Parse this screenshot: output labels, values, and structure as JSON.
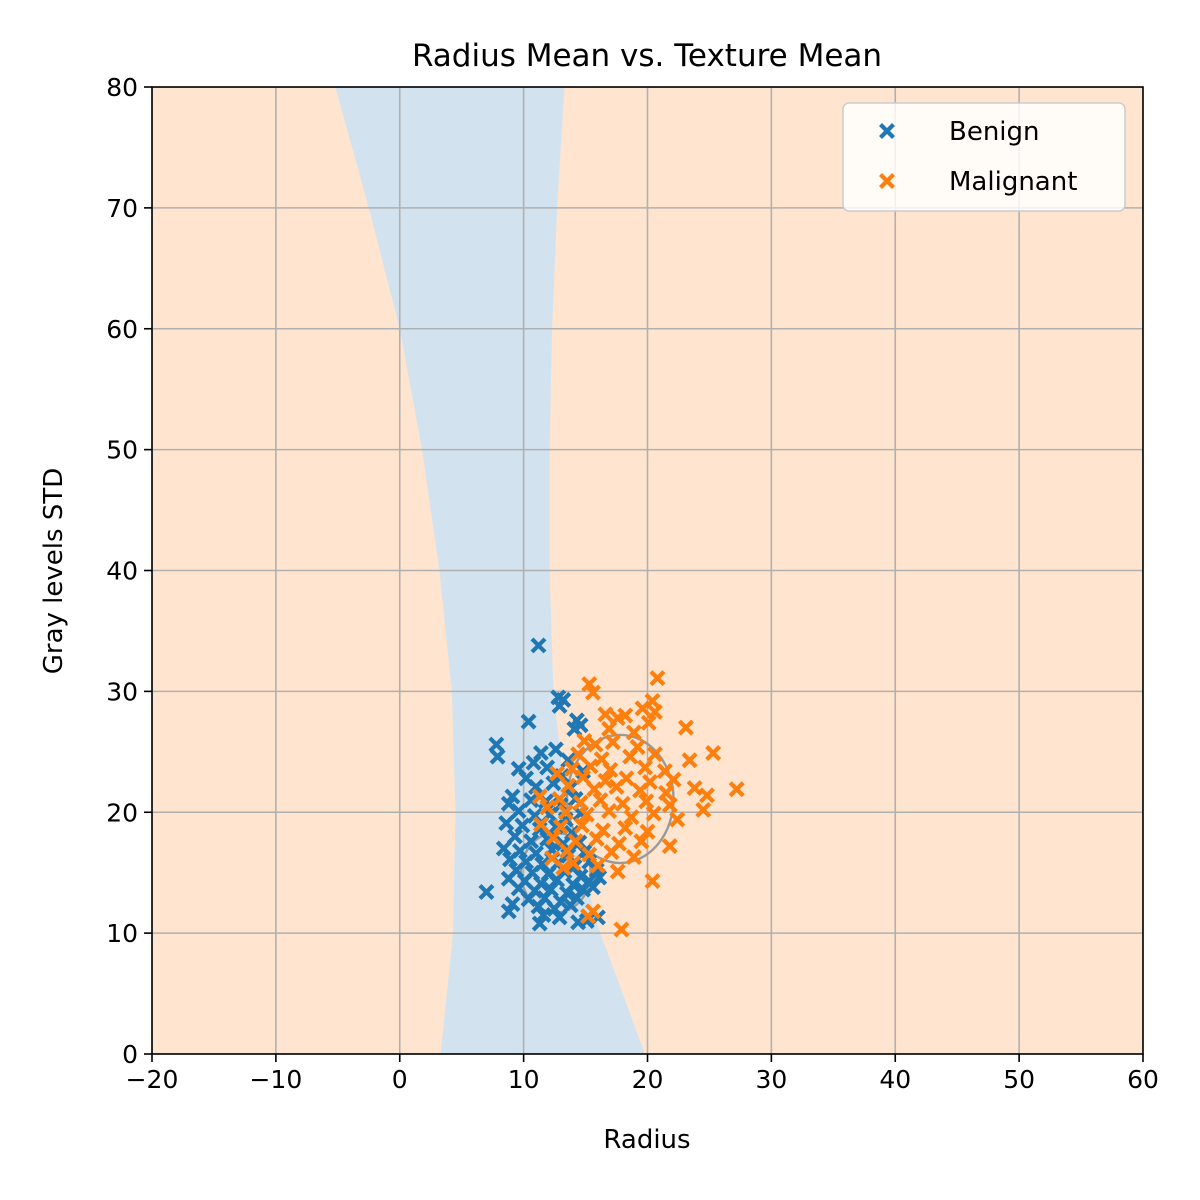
{
  "chart_data": {
    "type": "scatter",
    "title": "Radius Mean vs. Texture Mean",
    "xlabel": "Radius",
    "ylabel": "Gray levels STD",
    "xlim": [
      -20,
      60
    ],
    "ylim": [
      0,
      80
    ],
    "xticks": [
      -20,
      -10,
      0,
      10,
      20,
      30,
      40,
      50,
      60
    ],
    "yticks": [
      0,
      10,
      20,
      30,
      40,
      50,
      60,
      70,
      80
    ],
    "xtick_labels": [
      "−20",
      "−10",
      "0",
      "10",
      "20",
      "30",
      "40",
      "50",
      "60"
    ],
    "ytick_labels": [
      "0",
      "10",
      "20",
      "30",
      "40",
      "50",
      "60",
      "70",
      "80"
    ],
    "grid": true,
    "legend_position": "top-right",
    "background_region_color": "#ffe5cf",
    "decision_region": {
      "color": "#d2e3ef",
      "label_class": "Benign",
      "left_boundary": [
        [
          -5.2,
          80
        ],
        [
          -2.5,
          70
        ],
        [
          0,
          60
        ],
        [
          1.8,
          50
        ],
        [
          3.2,
          40
        ],
        [
          4.2,
          30
        ],
        [
          4.5,
          20
        ],
        [
          4.3,
          10
        ],
        [
          3.3,
          0
        ]
      ],
      "right_boundary": [
        [
          13.3,
          80
        ],
        [
          12.7,
          70
        ],
        [
          12.3,
          60
        ],
        [
          12.1,
          50
        ],
        [
          12.1,
          40
        ],
        [
          12.4,
          30
        ],
        [
          13.5,
          20
        ],
        [
          16.2,
          10
        ],
        [
          19.8,
          0
        ]
      ]
    },
    "contours": [
      {
        "color": "#999999",
        "center": [
          12.6,
          15.0
        ],
        "rx": 2.8,
        "ry": 3.3
      },
      {
        "color": "#999999",
        "center": [
          17.8,
          21.1
        ],
        "rx": 4.3,
        "ry": 5.3
      }
    ],
    "series": [
      {
        "name": "Benign",
        "color": "#1f77b4",
        "marker": "x",
        "points": [
          [
            11.2,
            33.8
          ],
          [
            12.8,
            29.5
          ],
          [
            13.2,
            29.3
          ],
          [
            12.9,
            28.8
          ],
          [
            14.3,
            27.6
          ],
          [
            10.4,
            27.5
          ],
          [
            14.6,
            27.2
          ],
          [
            14.1,
            26.9
          ],
          [
            7.8,
            25.6
          ],
          [
            7.9,
            24.6
          ],
          [
            11.4,
            24.9
          ],
          [
            12.6,
            25.2
          ],
          [
            10.8,
            24.1
          ],
          [
            13.6,
            24.3
          ],
          [
            9.6,
            23.6
          ],
          [
            11.9,
            23.7
          ],
          [
            13.1,
            23.0
          ],
          [
            14.8,
            23.4
          ],
          [
            10.2,
            22.8
          ],
          [
            11.0,
            22.1
          ],
          [
            12.4,
            22.4
          ],
          [
            13.8,
            22.0
          ],
          [
            9.1,
            21.3
          ],
          [
            10.6,
            21.0
          ],
          [
            11.8,
            20.9
          ],
          [
            13.0,
            20.6
          ],
          [
            14.2,
            21.1
          ],
          [
            8.8,
            20.7
          ],
          [
            9.6,
            20.1
          ],
          [
            10.9,
            19.7
          ],
          [
            12.1,
            19.8
          ],
          [
            13.4,
            19.4
          ],
          [
            14.6,
            19.9
          ],
          [
            8.6,
            19.1
          ],
          [
            9.9,
            18.9
          ],
          [
            11.3,
            18.6
          ],
          [
            12.6,
            18.8
          ],
          [
            13.9,
            18.3
          ],
          [
            9.3,
            18.0
          ],
          [
            10.6,
            17.6
          ],
          [
            11.9,
            17.8
          ],
          [
            13.2,
            17.4
          ],
          [
            14.5,
            17.5
          ],
          [
            8.4,
            17.0
          ],
          [
            9.7,
            16.8
          ],
          [
            11.0,
            16.6
          ],
          [
            12.3,
            16.9
          ],
          [
            13.6,
            16.4
          ],
          [
            14.9,
            16.7
          ],
          [
            8.9,
            16.1
          ],
          [
            10.2,
            15.9
          ],
          [
            11.5,
            15.7
          ],
          [
            12.8,
            15.8
          ],
          [
            14.1,
            15.5
          ],
          [
            15.3,
            15.9
          ],
          [
            9.4,
            15.2
          ],
          [
            10.7,
            15.0
          ],
          [
            12.0,
            14.9
          ],
          [
            13.3,
            15.1
          ],
          [
            14.6,
            14.7
          ],
          [
            15.9,
            15.2
          ],
          [
            8.8,
            14.5
          ],
          [
            10.1,
            14.3
          ],
          [
            11.4,
            14.1
          ],
          [
            12.7,
            14.4
          ],
          [
            14.0,
            14.0
          ],
          [
            15.3,
            14.3
          ],
          [
            16.1,
            14.6
          ],
          [
            9.6,
            13.7
          ],
          [
            10.9,
            13.5
          ],
          [
            12.2,
            13.6
          ],
          [
            13.5,
            13.3
          ],
          [
            14.8,
            13.6
          ],
          [
            15.6,
            13.8
          ],
          [
            7.0,
            13.4
          ],
          [
            10.4,
            12.8
          ],
          [
            11.7,
            12.9
          ],
          [
            13.0,
            12.6
          ],
          [
            14.3,
            12.9
          ],
          [
            9.1,
            12.4
          ],
          [
            11.2,
            12.2
          ],
          [
            12.5,
            12.0
          ],
          [
            13.8,
            12.3
          ],
          [
            8.8,
            11.8
          ],
          [
            11.6,
            11.5
          ],
          [
            12.9,
            11.3
          ],
          [
            11.3,
            10.8
          ],
          [
            14.4,
            10.9
          ],
          [
            15.1,
            11.0
          ],
          [
            16.0,
            11.3
          ]
        ]
      },
      {
        "name": "Malignant",
        "color": "#ff7f0e",
        "marker": "x",
        "points": [
          [
            20.8,
            31.1
          ],
          [
            15.3,
            30.6
          ],
          [
            15.6,
            29.9
          ],
          [
            20.4,
            29.2
          ],
          [
            19.6,
            28.6
          ],
          [
            20.6,
            28.3
          ],
          [
            16.6,
            28.1
          ],
          [
            17.6,
            27.8
          ],
          [
            18.2,
            28.0
          ],
          [
            23.1,
            27.0
          ],
          [
            20.1,
            27.4
          ],
          [
            16.9,
            26.9
          ],
          [
            18.9,
            26.6
          ],
          [
            14.9,
            25.9
          ],
          [
            15.8,
            25.6
          ],
          [
            17.2,
            25.8
          ],
          [
            19.2,
            25.4
          ],
          [
            25.3,
            24.9
          ],
          [
            20.6,
            24.8
          ],
          [
            14.4,
            24.8
          ],
          [
            16.3,
            24.4
          ],
          [
            18.6,
            24.6
          ],
          [
            23.4,
            24.3
          ],
          [
            13.9,
            23.6
          ],
          [
            15.4,
            23.8
          ],
          [
            17.0,
            23.5
          ],
          [
            19.8,
            23.7
          ],
          [
            21.4,
            23.4
          ],
          [
            12.7,
            23.2
          ],
          [
            14.8,
            22.9
          ],
          [
            16.6,
            22.6
          ],
          [
            18.3,
            22.8
          ],
          [
            20.2,
            22.5
          ],
          [
            22.1,
            22.7
          ],
          [
            13.6,
            22.2
          ],
          [
            15.7,
            21.9
          ],
          [
            17.5,
            22.1
          ],
          [
            19.4,
            21.8
          ],
          [
            21.5,
            21.6
          ],
          [
            23.8,
            22.0
          ],
          [
            24.8,
            21.4
          ],
          [
            27.2,
            21.9
          ],
          [
            11.3,
            21.3
          ],
          [
            12.9,
            21.1
          ],
          [
            14.6,
            20.8
          ],
          [
            16.2,
            21.0
          ],
          [
            18.0,
            20.7
          ],
          [
            19.9,
            20.9
          ],
          [
            21.8,
            20.6
          ],
          [
            24.5,
            20.2
          ],
          [
            11.9,
            20.4
          ],
          [
            13.4,
            20.0
          ],
          [
            15.1,
            19.8
          ],
          [
            16.9,
            20.1
          ],
          [
            18.7,
            19.6
          ],
          [
            20.5,
            19.9
          ],
          [
            22.4,
            19.4
          ],
          [
            11.4,
            19.0
          ],
          [
            13.0,
            18.8
          ],
          [
            14.7,
            18.9
          ],
          [
            16.4,
            18.5
          ],
          [
            18.2,
            18.7
          ],
          [
            20.0,
            18.4
          ],
          [
            12.4,
            17.9
          ],
          [
            14.2,
            17.6
          ],
          [
            15.9,
            17.8
          ],
          [
            17.7,
            17.4
          ],
          [
            19.5,
            17.6
          ],
          [
            21.8,
            17.2
          ],
          [
            13.5,
            16.8
          ],
          [
            15.3,
            16.5
          ],
          [
            17.1,
            16.7
          ],
          [
            18.9,
            16.3
          ],
          [
            12.3,
            16.2
          ],
          [
            14.0,
            15.8
          ],
          [
            16.0,
            15.6
          ],
          [
            13.2,
            15.4
          ],
          [
            17.6,
            15.1
          ],
          [
            20.4,
            14.3
          ],
          [
            15.6,
            11.8
          ],
          [
            15.2,
            11.4
          ],
          [
            17.9,
            10.3
          ]
        ]
      }
    ]
  }
}
